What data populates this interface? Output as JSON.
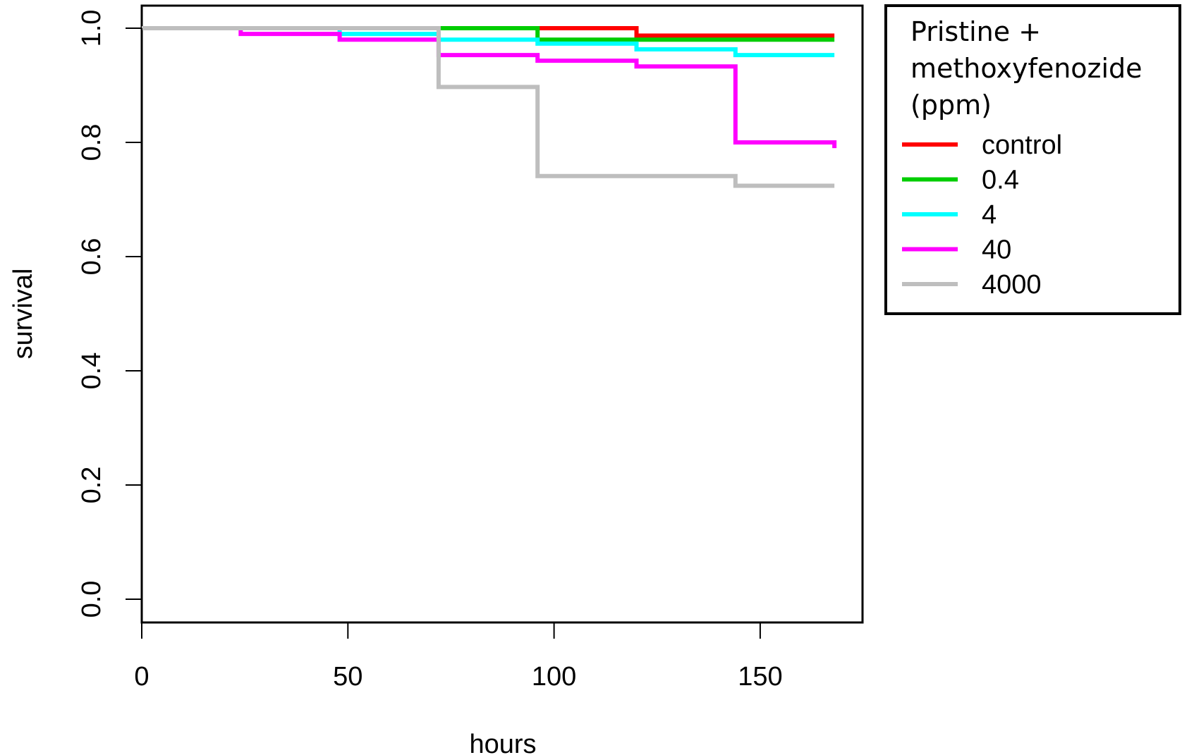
{
  "chart_data": {
    "type": "line",
    "step": true,
    "xlabel": "hours",
    "ylabel": "survival",
    "xlim": [
      0,
      175
    ],
    "ylim": [
      0,
      1.0
    ],
    "x_ticks": [
      "0",
      "50",
      "100",
      "150"
    ],
    "y_ticks": [
      "0.0",
      "0.2",
      "0.4",
      "0.6",
      "0.8",
      "1.0"
    ],
    "legend_title": [
      "Pristine +",
      "methoxyfenozide",
      "(ppm)"
    ],
    "legend_position": "right",
    "series": [
      {
        "name": "control",
        "color": "#ff0000",
        "x": [
          0,
          120,
          168
        ],
        "y": [
          1.0,
          0.987,
          0.987
        ]
      },
      {
        "name": "0.4",
        "color": "#00cd00",
        "x": [
          0,
          96,
          168
        ],
        "y": [
          1.0,
          0.98,
          0.98
        ]
      },
      {
        "name": "4",
        "color": "#00ffff",
        "x": [
          0,
          48,
          72,
          96,
          120,
          144,
          168
        ],
        "y": [
          1.0,
          0.99,
          0.98,
          0.973,
          0.963,
          0.953,
          0.953
        ]
      },
      {
        "name": "40",
        "color": "#ff00ff",
        "x": [
          0,
          24,
          48,
          72,
          96,
          120,
          144,
          168
        ],
        "y": [
          1.0,
          0.99,
          0.98,
          0.953,
          0.943,
          0.933,
          0.8,
          0.79
        ]
      },
      {
        "name": "4000",
        "color": "#bebebe",
        "x": [
          0,
          72,
          96,
          144,
          168
        ],
        "y": [
          1.0,
          0.897,
          0.741,
          0.724,
          0.724
        ]
      }
    ]
  }
}
